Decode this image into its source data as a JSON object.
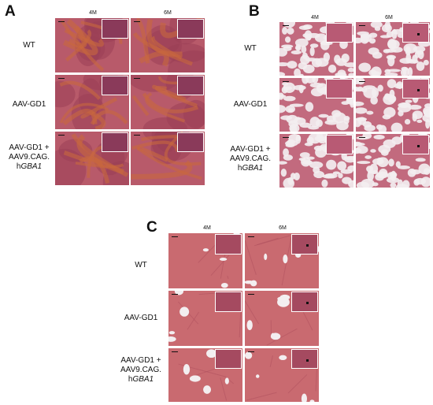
{
  "panels": [
    {
      "letter": "A",
      "columns": [
        "4M",
        "6M"
      ],
      "rows": [
        {
          "lines": [
            "WT"
          ]
        },
        {
          "lines": [
            "AAV-GD1"
          ]
        },
        {
          "lines": [
            "AAV-GD1 +",
            "AAV9.CAG.",
            "hGBA1"
          ]
        }
      ]
    },
    {
      "letter": "B",
      "columns": [
        "4M",
        "6M"
      ],
      "rows": [
        {
          "lines": [
            "WT"
          ]
        },
        {
          "lines": [
            "AAV-GD1"
          ]
        },
        {
          "lines": [
            "AAV-GD1 +",
            "AAV9.CAG.",
            "hGBA1"
          ]
        }
      ]
    },
    {
      "letter": "C",
      "columns": [
        "4M",
        "6M"
      ],
      "rows": [
        {
          "lines": [
            "WT"
          ]
        },
        {
          "lines": [
            "AAV-GD1"
          ]
        },
        {
          "lines": [
            "AAV-GD1 +",
            "AAV9.CAG.",
            "hGBA1"
          ]
        }
      ]
    }
  ],
  "colors": {
    "spleen_base": "#b85a6a",
    "spleen_dark": "#9a4056",
    "spleen_red": "#c8683e",
    "brain_base": "#e8c4cc",
    "brain_stroma": "#c26a7e",
    "liver_base": "#c96a70",
    "liver_dark": "#b25360",
    "vessel": "#f3eef0",
    "inset_spleen": "#8a3a5a",
    "inset_brain": "#b85a74",
    "inset_liver": "#a54a60"
  }
}
